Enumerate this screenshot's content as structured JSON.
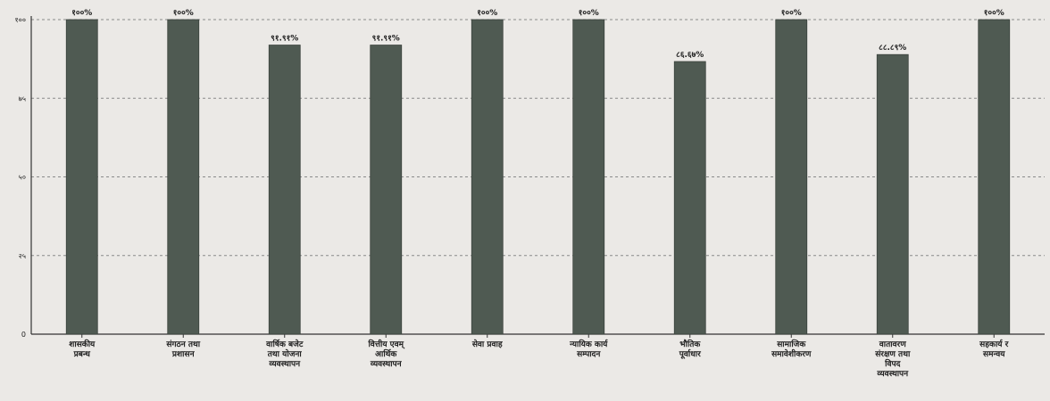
{
  "chart_data": {
    "type": "bar",
    "title": "",
    "xlabel": "",
    "ylabel": "",
    "ylim": [
      0,
      100
    ],
    "yticks": [
      0,
      25,
      50,
      75,
      100
    ],
    "ytick_labels": [
      "0",
      "२५",
      "५०",
      "७५",
      "१००"
    ],
    "grid": true,
    "categories": [
      [
        "शासकीय",
        "प्रबन्ध"
      ],
      [
        "संगठन तथा",
        "प्रशासन"
      ],
      [
        "वार्षिक बजेट",
        "तथा योजना",
        "व्यवस्थापन"
      ],
      [
        "वित्तीय एवम्",
        "आर्थिक",
        "व्यवस्थापन"
      ],
      [
        "सेवा प्रवाह"
      ],
      [
        "न्यायिक कार्य",
        "सम्पादन"
      ],
      [
        "भौतिक",
        "पूर्वाधार"
      ],
      [
        "सामाजिक",
        "समावेशीकरण"
      ],
      [
        "वातावरण",
        "संरक्षण तथा",
        "विपद",
        "व्यवस्थापन"
      ],
      [
        "सहकार्य र",
        "समन्वय"
      ]
    ],
    "values": [
      100,
      100,
      91.91,
      91.91,
      100,
      100,
      86.67,
      100,
      88.89,
      100
    ],
    "value_labels": [
      "१००%",
      "१००%",
      "९१.९१%",
      "९१.९१%",
      "१००%",
      "१००%",
      "८६.६७%",
      "१००%",
      "८८.८९%",
      "१००%"
    ],
    "colors": {
      "bar": "#4f5a52",
      "bar_edge": "#3a423c",
      "grid": "#8a8a8a",
      "axis": "#333333",
      "text": "#222222"
    }
  }
}
